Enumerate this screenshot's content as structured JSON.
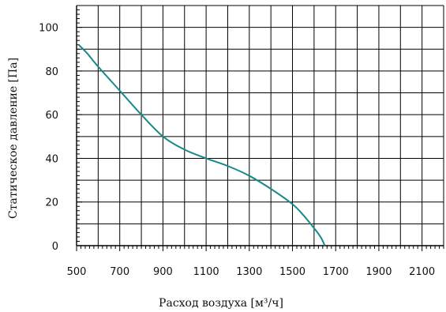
{
  "chart_data": {
    "type": "line",
    "xlabel": "Расход воздуха [м³/ч]",
    "ylabel": "Статическое давление [Па]",
    "xlim": [
      500,
      2200
    ],
    "ylim": [
      0,
      110
    ],
    "x_ticks": [
      500,
      700,
      900,
      1100,
      1300,
      1500,
      1700,
      1900,
      2100
    ],
    "y_ticks": [
      0,
      20,
      40,
      60,
      80,
      100
    ],
    "grid": true,
    "colors": {
      "series": "#168a8a",
      "grid": "#000000"
    },
    "series": [
      {
        "x": [
          510,
          550,
          600,
          700,
          800,
          900,
          1000,
          1100,
          1200,
          1300,
          1400,
          1500,
          1550,
          1600,
          1630,
          1650
        ],
        "y": [
          92,
          88,
          82,
          71,
          60,
          50,
          44,
          40,
          36.5,
          32,
          26,
          19,
          14,
          8,
          4,
          0
        ]
      }
    ]
  }
}
